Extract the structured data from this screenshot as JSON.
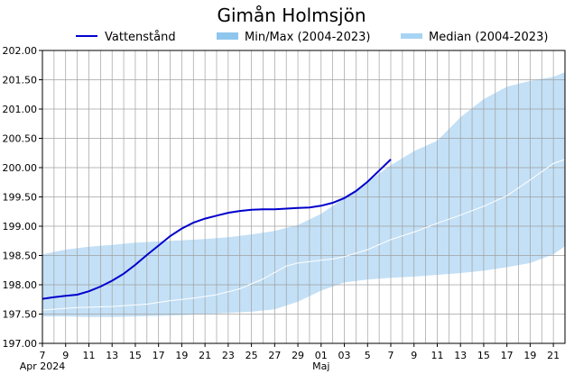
{
  "chart_data": {
    "type": "line",
    "title": "Gimån Holmsjön",
    "legend": [
      {
        "label": "Vattenstånd",
        "kind": "line",
        "color": "#0000cc"
      },
      {
        "label": "Min/Max (2004-2023)",
        "kind": "band",
        "color": "#8ec6ee"
      },
      {
        "label": "Median (2004-2023)",
        "kind": "line",
        "color": "#a8d4f4"
      }
    ],
    "colors": {
      "series": "#0000cc",
      "band": "#c3e0f6",
      "median": "#ffffff",
      "legend_band": "#8ec6ee",
      "legend_median": "#a8d4f4",
      "grid": "#a0a0a0"
    },
    "ylim": [
      197.0,
      202.0
    ],
    "ytick_labels": [
      "197.00",
      "197.50",
      "198.00",
      "198.50",
      "199.00",
      "199.50",
      "200.00",
      "200.50",
      "201.00",
      "201.50",
      "202.00"
    ],
    "xlim": [
      7,
      52
    ],
    "x_tick_labels": [
      "7",
      "9",
      "11",
      "13",
      "15",
      "17",
      "19",
      "21",
      "23",
      "25",
      "27",
      "29",
      "01",
      "03",
      "5",
      "7",
      "9",
      "11",
      "13",
      "15",
      "17",
      "19",
      "21"
    ],
    "month_labels": [
      {
        "label": "Apr 2024",
        "day_index": 7
      },
      {
        "label": "Maj",
        "day_index": 31
      }
    ],
    "series": [
      {
        "name": "Vattenstånd",
        "x": [
          7,
          8,
          9,
          10,
          11,
          12,
          13,
          14,
          15,
          16,
          17,
          18,
          19,
          20,
          21,
          22,
          23,
          24,
          25,
          26,
          27,
          28,
          29,
          30,
          31,
          32,
          33,
          34,
          35,
          36,
          37
        ],
        "values": [
          197.76,
          197.79,
          197.81,
          197.83,
          197.89,
          197.97,
          198.07,
          198.19,
          198.34,
          198.51,
          198.67,
          198.83,
          198.96,
          199.06,
          199.13,
          199.18,
          199.23,
          199.26,
          199.28,
          199.29,
          199.29,
          199.3,
          199.31,
          199.32,
          199.35,
          199.4,
          199.48,
          199.6,
          199.76,
          199.95,
          200.14
        ]
      },
      {
        "name": "Median (2004-2023)",
        "x": [
          7,
          10,
          13,
          16,
          18,
          20,
          22,
          24,
          26,
          28,
          29,
          31,
          32,
          33,
          35,
          37,
          39,
          41,
          43,
          45,
          47,
          49,
          51,
          52
        ],
        "values": [
          197.57,
          197.61,
          197.63,
          197.67,
          197.73,
          197.77,
          197.83,
          197.93,
          198.1,
          198.32,
          198.37,
          198.42,
          198.44,
          198.48,
          198.6,
          198.77,
          198.9,
          199.05,
          199.19,
          199.34,
          199.52,
          199.79,
          200.07,
          200.14
        ]
      }
    ],
    "band": {
      "name": "Min/Max (2004-2023)",
      "x": [
        7,
        9,
        11,
        13,
        15,
        17,
        19,
        21,
        23,
        25,
        27,
        29,
        31,
        33,
        35,
        37,
        39,
        41,
        43,
        45,
        47,
        49,
        51,
        52
      ],
      "min": [
        197.46,
        197.46,
        197.45,
        197.45,
        197.46,
        197.47,
        197.48,
        197.5,
        197.52,
        197.54,
        197.58,
        197.71,
        197.9,
        198.04,
        198.09,
        198.12,
        198.14,
        198.17,
        198.2,
        198.24,
        198.3,
        198.37,
        198.52,
        198.66
      ],
      "max": [
        198.52,
        198.6,
        198.65,
        198.68,
        198.72,
        198.74,
        198.76,
        198.78,
        198.81,
        198.86,
        198.92,
        199.02,
        199.21,
        199.48,
        199.76,
        200.04,
        200.28,
        200.46,
        200.86,
        201.17,
        201.38,
        201.48,
        201.55,
        201.63
      ]
    }
  }
}
